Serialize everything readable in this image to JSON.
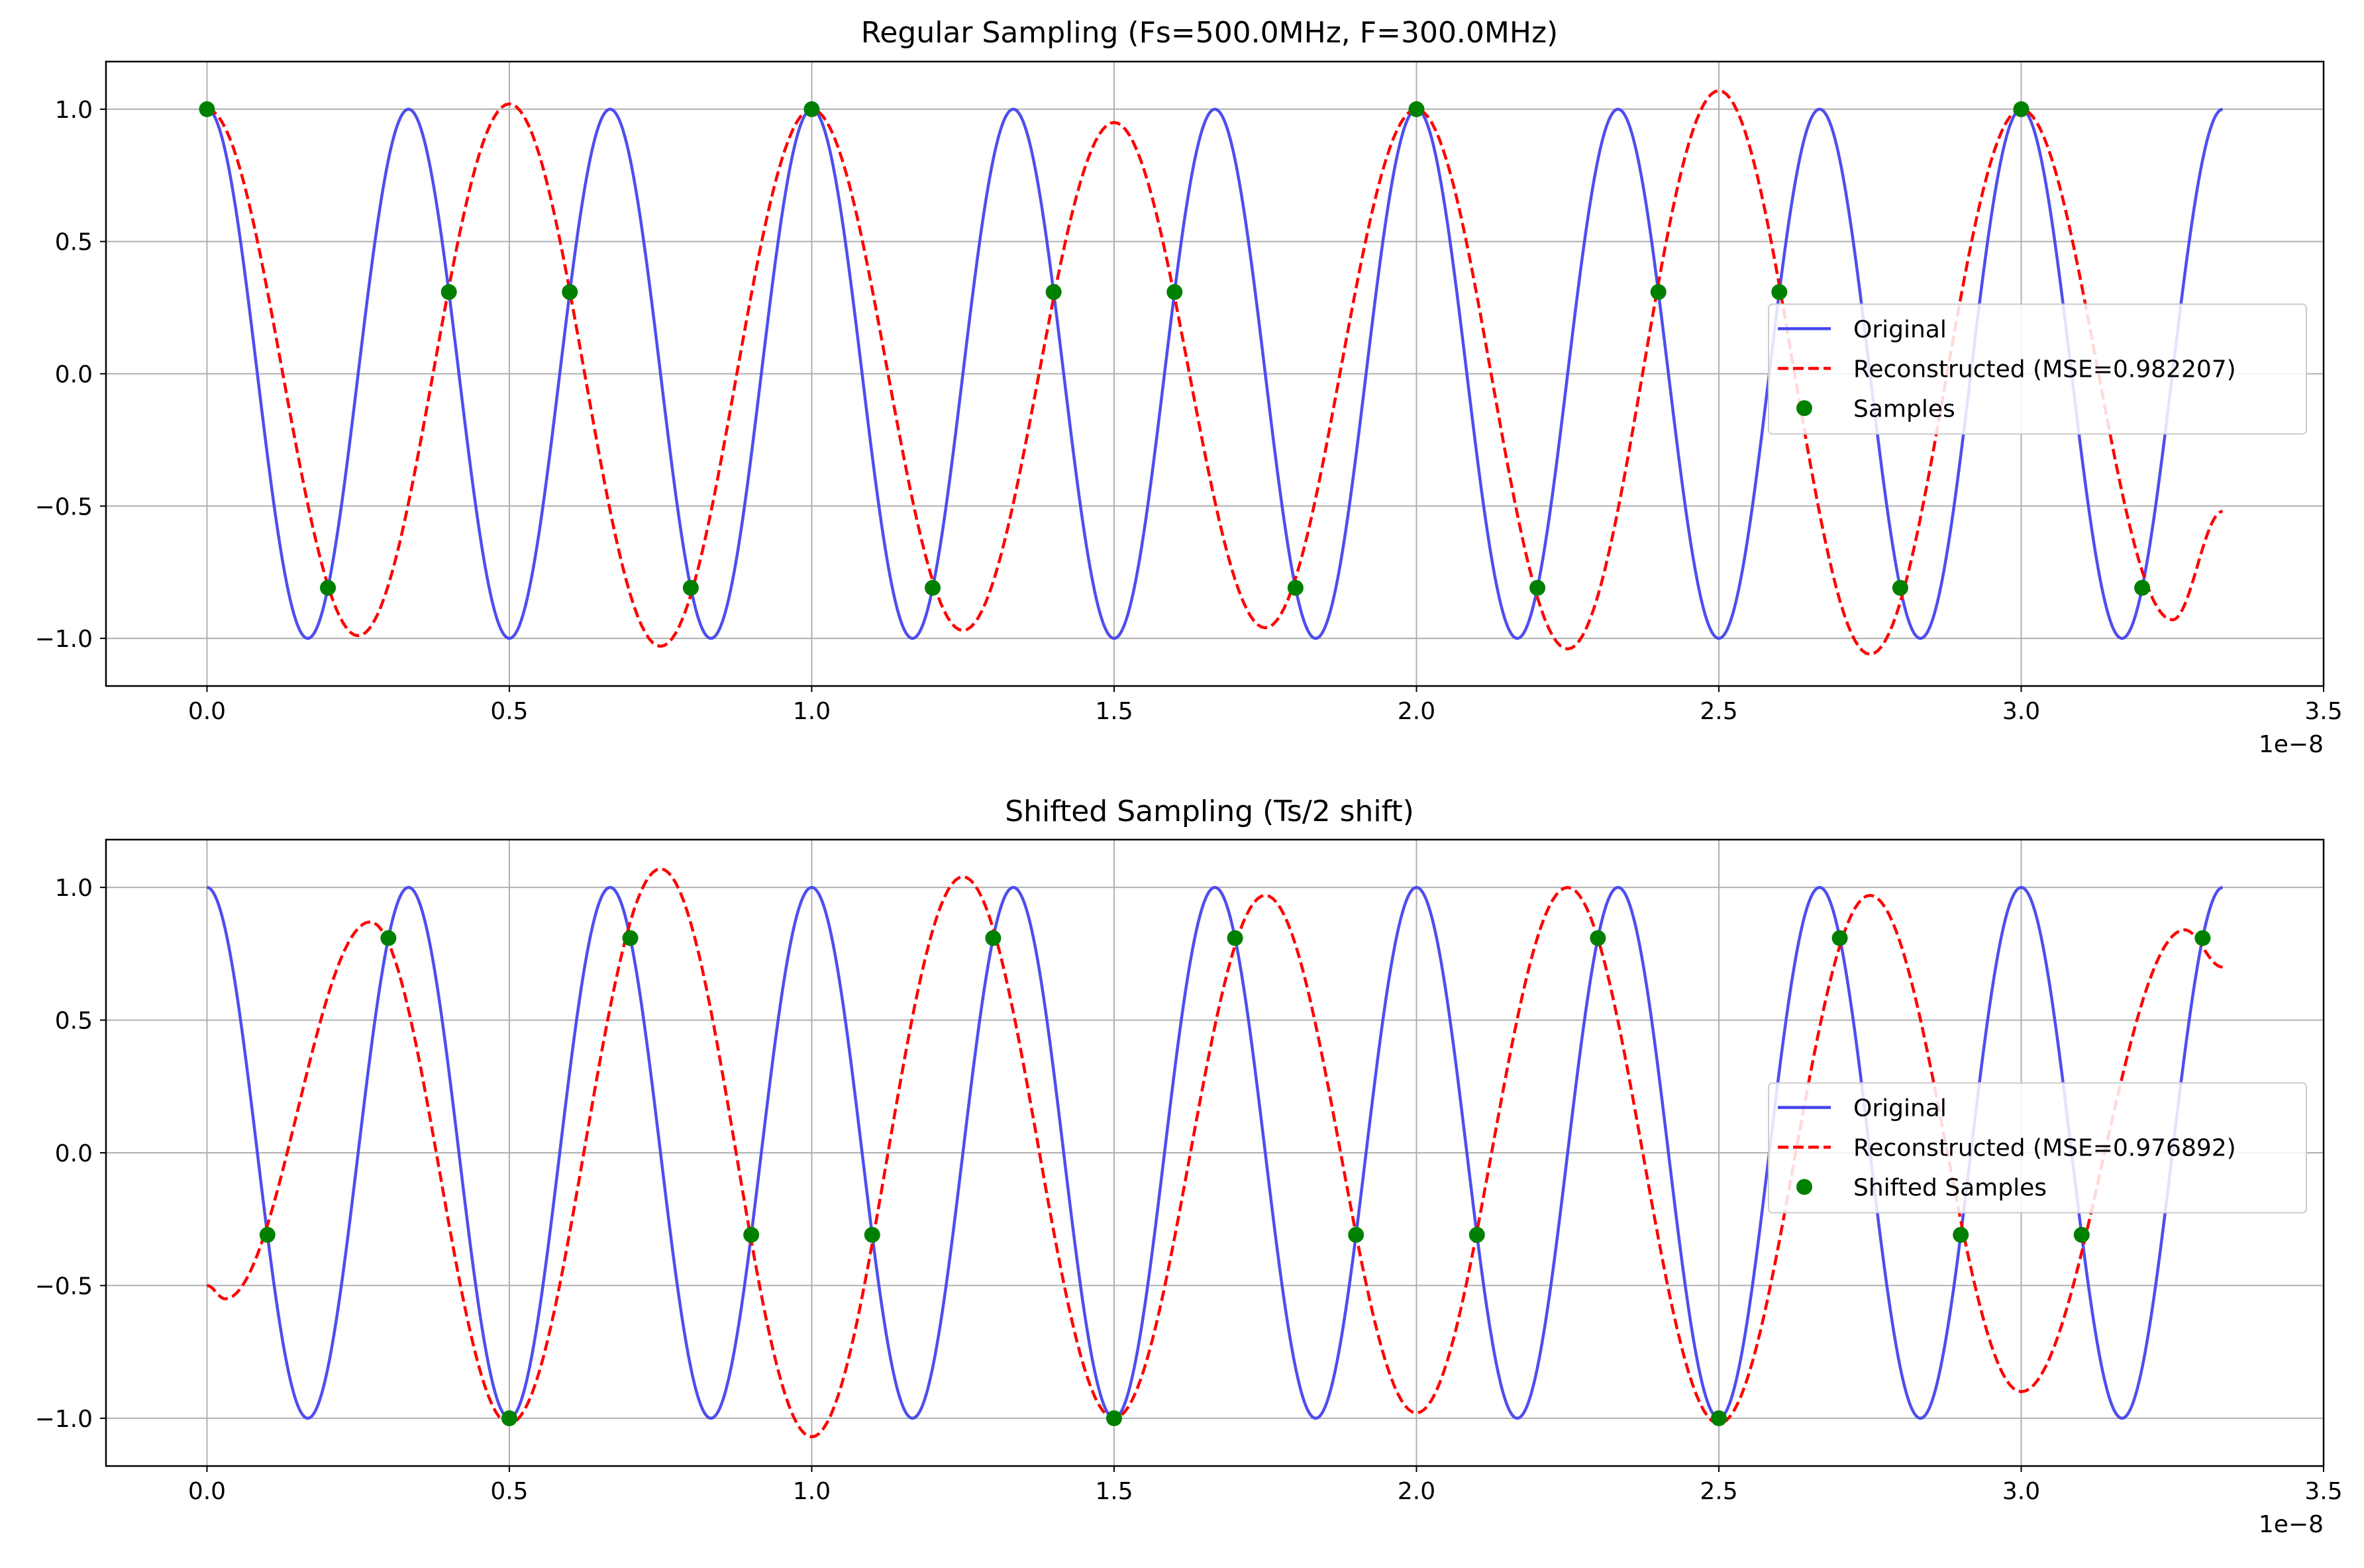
{
  "chart_data": [
    {
      "type": "line",
      "title": "Regular Sampling (Fs=500.0MHz, F=300.0MHz)",
      "xlabel": "",
      "ylabel": "",
      "x_offset_label": "1e−8",
      "xlim": [
        -0.167,
        3.5
      ],
      "ylim": [
        -1.18,
        1.18
      ],
      "xticks": [
        0.0,
        0.5,
        1.0,
        1.5,
        2.0,
        2.5,
        3.0,
        3.5
      ],
      "xtick_labels": [
        "0.0",
        "0.5",
        "1.0",
        "1.5",
        "2.0",
        "2.5",
        "3.0",
        "3.5"
      ],
      "yticks": [
        1.0,
        0.5,
        0.0,
        -0.5,
        -1.0
      ],
      "ytick_labels": [
        "1.0",
        "0.5",
        "0.0",
        "−0.5",
        "−1.0"
      ],
      "grid": true,
      "legend_position": "center-right",
      "series": [
        {
          "name": "Original",
          "style": "solid",
          "color": "#4444ee",
          "x_range": [
            0,
            3.333
          ],
          "formula": "cos(2*pi*300MHz*t)",
          "peaks_x": [
            0.0,
            0.333,
            0.667,
            1.0,
            1.333,
            1.667,
            2.0,
            2.333,
            2.667,
            3.0,
            3.333
          ],
          "troughs_x": [
            0.167,
            0.5,
            0.833,
            1.167,
            1.5,
            1.833,
            2.167,
            2.5,
            2.833,
            3.167
          ]
        },
        {
          "name": "Reconstructed (MSE=0.982207)",
          "style": "dashed",
          "color": "#ff0000",
          "x": [
            0.0,
            0.25,
            0.5,
            0.75,
            1.0,
            1.25,
            1.5,
            1.75,
            2.0,
            2.25,
            2.5,
            2.75,
            3.0,
            3.25,
            3.333
          ],
          "values": [
            1.0,
            -0.99,
            1.02,
            -1.03,
            1.0,
            -0.97,
            0.95,
            -0.96,
            1.0,
            -1.04,
            1.07,
            -1.06,
            1.0,
            -0.93,
            -0.52
          ]
        },
        {
          "name": "Samples",
          "style": "markers",
          "color": "#008000",
          "x": [
            0.0,
            0.2,
            0.4,
            0.6,
            0.8,
            1.0,
            1.2,
            1.4,
            1.6,
            1.8,
            2.0,
            2.2,
            2.4,
            2.6,
            2.8,
            3.0,
            3.2
          ],
          "values": [
            1.0,
            -0.809,
            0.309,
            0.309,
            -0.809,
            1.0,
            -0.809,
            0.309,
            0.309,
            -0.809,
            1.0,
            -0.809,
            0.309,
            0.309,
            -0.809,
            1.0,
            -0.809
          ]
        }
      ]
    },
    {
      "type": "line",
      "title": "Shifted Sampling (Ts/2 shift)",
      "xlabel": "",
      "ylabel": "",
      "x_offset_label": "1e−8",
      "xlim": [
        -0.167,
        3.5
      ],
      "ylim": [
        -1.18,
        1.18
      ],
      "xticks": [
        0.0,
        0.5,
        1.0,
        1.5,
        2.0,
        2.5,
        3.0,
        3.5
      ],
      "xtick_labels": [
        "0.0",
        "0.5",
        "1.0",
        "1.5",
        "2.0",
        "2.5",
        "3.0",
        "3.5"
      ],
      "yticks": [
        1.0,
        0.5,
        0.0,
        -0.5,
        -1.0
      ],
      "ytick_labels": [
        "1.0",
        "0.5",
        "0.0",
        "−0.5",
        "−1.0"
      ],
      "grid": true,
      "legend_position": "center-right",
      "series": [
        {
          "name": "Original",
          "style": "solid",
          "color": "#4444ee",
          "x_range": [
            0,
            3.333
          ],
          "formula": "cos(2*pi*300MHz*t)",
          "peaks_x": [
            0.0,
            0.333,
            0.667,
            1.0,
            1.333,
            1.667,
            2.0,
            2.333,
            2.667,
            3.0,
            3.333
          ],
          "troughs_x": [
            0.167,
            0.5,
            0.833,
            1.167,
            1.5,
            1.833,
            2.167,
            2.5,
            2.833,
            3.167
          ]
        },
        {
          "name": "Reconstructed (MSE=0.976892)",
          "style": "dashed",
          "color": "#ff0000",
          "x": [
            0.0,
            0.03,
            0.27,
            0.5,
            0.75,
            1.0,
            1.25,
            1.5,
            1.75,
            2.0,
            2.25,
            2.5,
            2.75,
            3.0,
            3.27,
            3.333
          ],
          "values": [
            -0.5,
            -0.55,
            0.87,
            -1.02,
            1.07,
            -1.07,
            1.04,
            -1.0,
            0.97,
            -0.98,
            1.0,
            -1.02,
            0.97,
            -0.9,
            0.84,
            0.7
          ]
        },
        {
          "name": "Shifted Samples",
          "style": "markers",
          "color": "#008000",
          "x": [
            0.1,
            0.3,
            0.5,
            0.7,
            0.9,
            1.1,
            1.3,
            1.5,
            1.7,
            1.9,
            2.1,
            2.3,
            2.5,
            2.7,
            2.9,
            3.1,
            3.3
          ],
          "values": [
            -0.309,
            0.809,
            -1.0,
            0.809,
            -0.309,
            -0.309,
            0.809,
            -1.0,
            0.809,
            -0.309,
            -0.309,
            0.809,
            -1.0,
            0.809,
            -0.309,
            -0.309,
            0.809
          ]
        }
      ]
    }
  ]
}
